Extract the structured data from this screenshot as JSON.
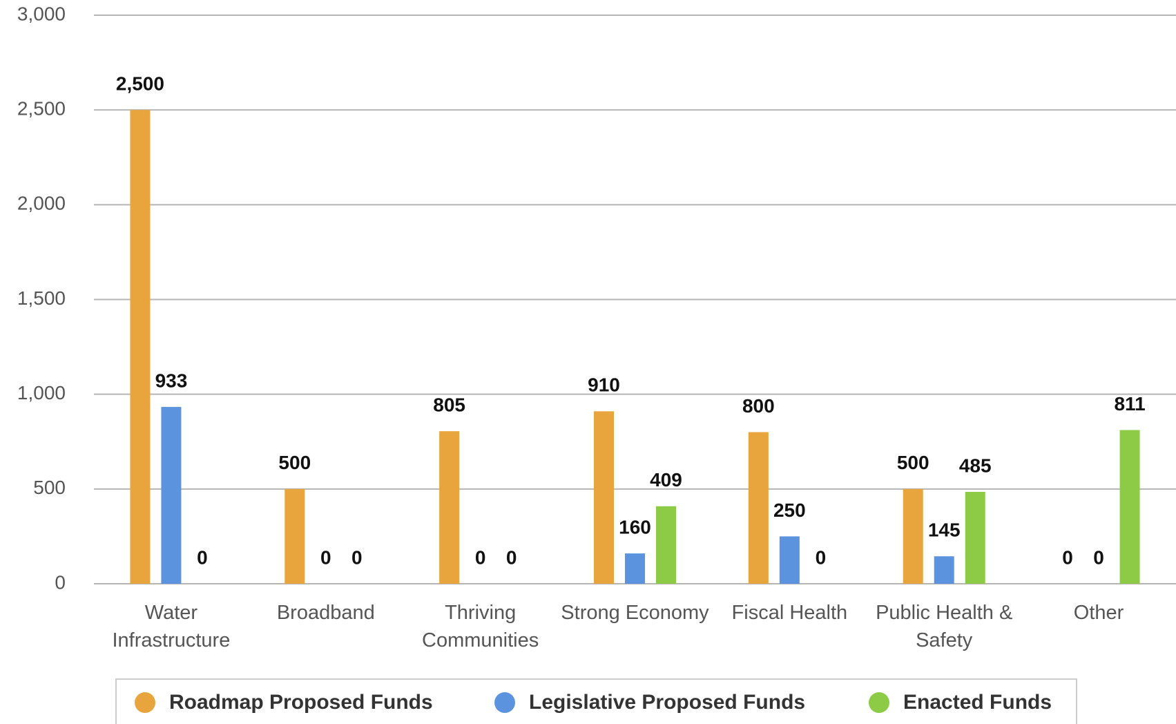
{
  "chart_data": {
    "type": "bar",
    "categories": [
      "Water Infrastructure",
      "Broadband",
      "Thriving Communities",
      "Strong Economy",
      "Fiscal Health",
      "Public Health & Safety",
      "Other"
    ],
    "series": [
      {
        "name": "Roadmap Proposed Funds",
        "color": "#e8a53e",
        "values": [
          2500,
          500,
          805,
          910,
          800,
          500,
          0
        ],
        "value_labels": [
          "2,500",
          "500",
          "805",
          "910",
          "800",
          "500",
          "0"
        ]
      },
      {
        "name": "Legislative Proposed Funds",
        "color": "#5b93de",
        "values": [
          933,
          0,
          0,
          160,
          250,
          145,
          0
        ]
      },
      {
        "name": "Enacted Funds",
        "color": "#8dcb46",
        "values": [
          0,
          0,
          0,
          409,
          0,
          485,
          811
        ]
      }
    ],
    "ylim": [
      0,
      3000
    ],
    "yticks": [
      0,
      500,
      {
        "value": 1000,
        "label": "1,000"
      },
      {
        "value": 1500,
        "label": "1,500"
      },
      {
        "value": 2000,
        "label": "2,000"
      },
      {
        "value": 2500,
        "label": "2,500"
      },
      {
        "value": 3000,
        "label": "3,000"
      }
    ],
    "grid": true,
    "legend": "bottom"
  }
}
